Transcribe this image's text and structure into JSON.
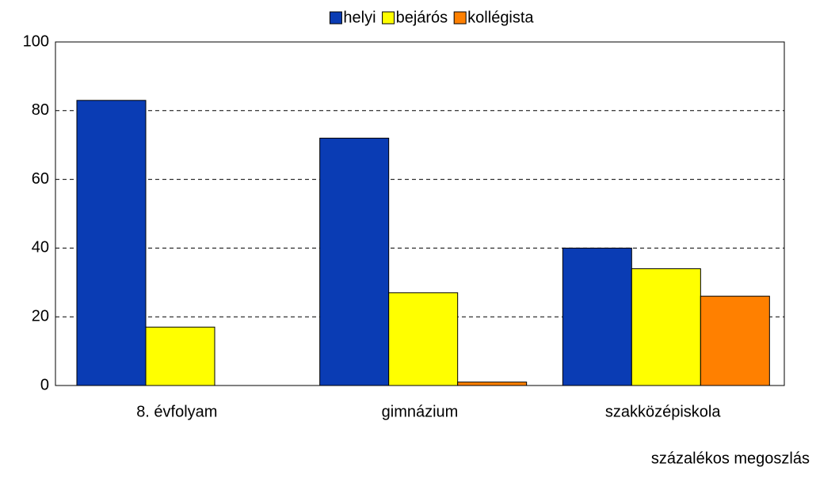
{
  "chart_data": {
    "type": "bar",
    "categories": [
      "8. évfolyam",
      "gimnázium",
      "szakközépiskola"
    ],
    "series": [
      {
        "name": "helyi",
        "color": "#0a3cb4",
        "values": [
          83,
          72,
          40
        ]
      },
      {
        "name": "bejárós",
        "color": "#ffff00",
        "values": [
          17,
          27,
          34
        ]
      },
      {
        "name": "kollégista",
        "color": "#ff8000",
        "values": [
          0,
          1,
          26
        ]
      }
    ],
    "ylim": [
      0,
      100
    ],
    "yticks": [
      0,
      20,
      40,
      60,
      80,
      100
    ],
    "grid": true,
    "legend": "top",
    "annotation": "százalékos megoszlás"
  }
}
